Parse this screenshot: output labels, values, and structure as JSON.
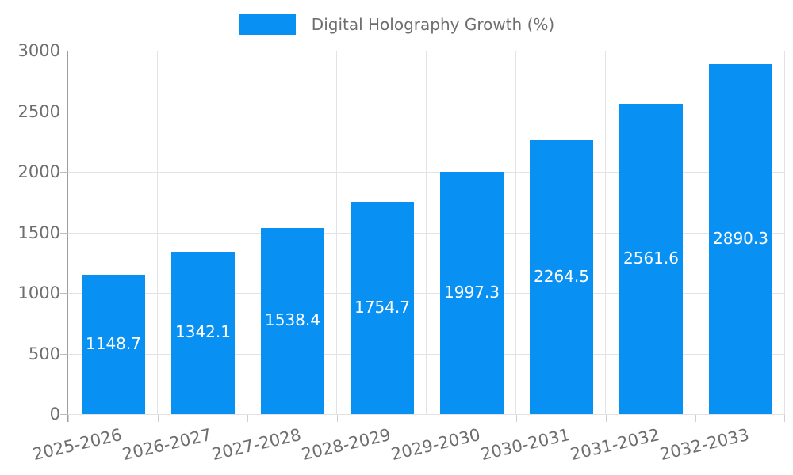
{
  "legend": {
    "label": "Digital Holography Growth (%)"
  },
  "colors": {
    "bar": "#0890f2",
    "grid": "#e3e3e3",
    "axis_line": "#9e9e9e",
    "tick_text": "#6e6e6e",
    "value_label_text": "#ffffff",
    "background": "#ffffff"
  },
  "chart_data": {
    "type": "bar",
    "title": "Digital Holography Growth (%)",
    "categories": [
      "2025-2026",
      "2026-2027",
      "2027-2028",
      "2028-2029",
      "2029-2030",
      "2030-2031",
      "2031-2032",
      "2032-2033"
    ],
    "values": [
      1148.7,
      1342.1,
      1538.4,
      1754.7,
      1997.3,
      2264.5,
      2561.6,
      2890.3
    ],
    "xlabel": "",
    "ylabel": "",
    "ylim": [
      0,
      3000
    ],
    "yticks": [
      0,
      500,
      1000,
      1500,
      2000,
      2500,
      3000
    ],
    "grid": true,
    "legend_position": "top",
    "value_label_position": "inside-center",
    "bar_color": "#0890f2"
  }
}
